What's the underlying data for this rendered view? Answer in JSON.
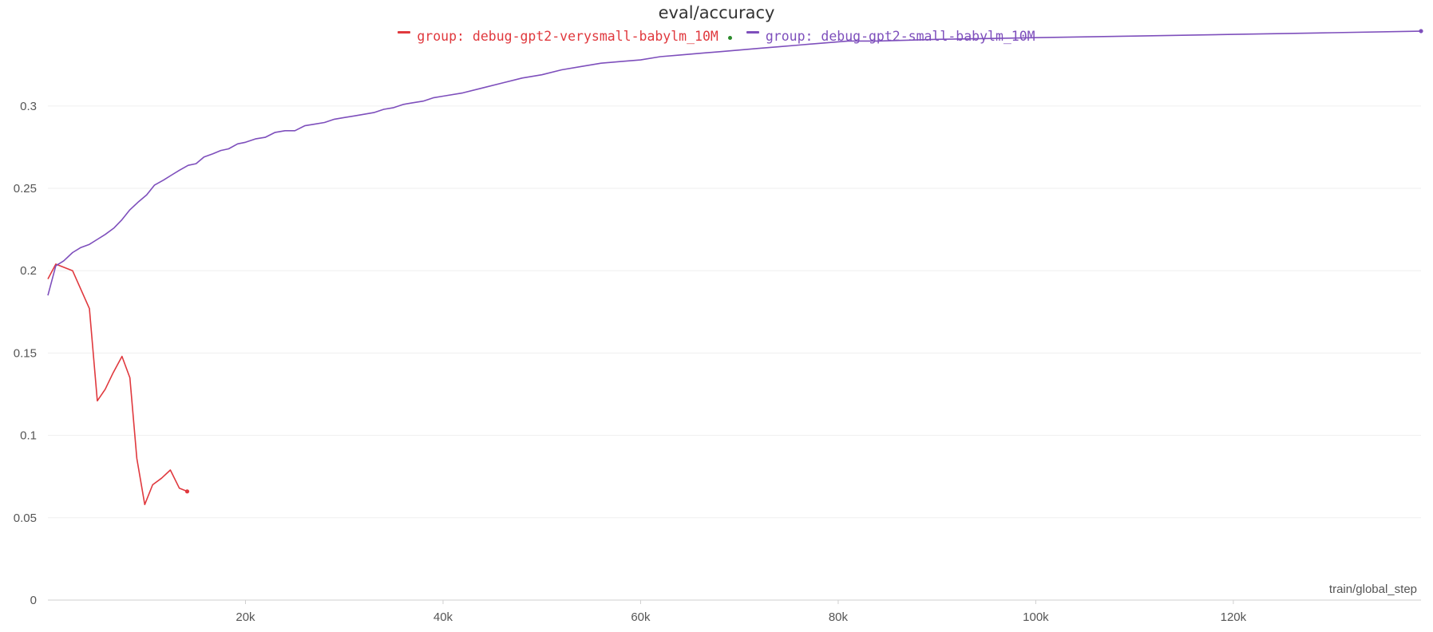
{
  "chart_data": {
    "type": "line",
    "title": "eval/accuracy",
    "xlabel": "train/global_step",
    "ylabel": "",
    "xlim": [
      0,
      139000
    ],
    "ylim": [
      0,
      0.345
    ],
    "x_ticks": [
      20000,
      40000,
      60000,
      80000,
      100000,
      120000
    ],
    "x_tick_labels": [
      "20k",
      "40k",
      "60k",
      "80k",
      "100k",
      "120k"
    ],
    "y_ticks": [
      0,
      0.05,
      0.1,
      0.15,
      0.2,
      0.25,
      0.3
    ],
    "y_tick_labels": [
      "0",
      "0.05",
      "0.1",
      "0.15",
      "0.2",
      "0.25",
      "0.3"
    ],
    "grid": "horizontal",
    "legend_position": "top-center",
    "series": [
      {
        "name": "group: debug-gpt2-verysmall-babylm_10M",
        "color": "#e0393e",
        "x": [
          0,
          800,
          2500,
          4200,
          5000,
          5800,
          6600,
          7500,
          8300,
          9000,
          9800,
          10600,
          11500,
          12400,
          13300,
          14100
        ],
        "y": [
          0.195,
          0.204,
          0.2,
          0.177,
          0.121,
          0.128,
          0.138,
          0.148,
          0.135,
          0.086,
          0.058,
          0.07,
          0.074,
          0.079,
          0.068,
          0.066
        ]
      },
      {
        "name": "group: debug-gpt2-small-babylm_10M",
        "color": "#7e4fbc",
        "x": [
          0,
          800,
          1600,
          2500,
          3300,
          4200,
          5000,
          5800,
          6700,
          7500,
          8300,
          9200,
          10000,
          10800,
          11700,
          12500,
          13300,
          14200,
          15000,
          15800,
          16700,
          17500,
          18300,
          19200,
          20000,
          21000,
          22000,
          23000,
          24000,
          25000,
          26000,
          27000,
          28000,
          29000,
          30000,
          31000,
          32000,
          33000,
          34000,
          35000,
          36000,
          37000,
          38000,
          39000,
          40000,
          42000,
          44000,
          46000,
          48000,
          50000,
          52000,
          54000,
          56000,
          58000,
          60000,
          62000,
          64000,
          66000,
          68000,
          70000,
          72000,
          74000,
          76000,
          78000,
          80000,
          81000,
          82000,
          83000,
          84000,
          90000,
          100000,
          110000,
          120000,
          130000,
          139000
        ],
        "y": [
          0.185,
          0.203,
          0.206,
          0.211,
          0.214,
          0.216,
          0.219,
          0.222,
          0.226,
          0.231,
          0.237,
          0.242,
          0.246,
          0.252,
          0.255,
          0.258,
          0.261,
          0.264,
          0.265,
          0.269,
          0.271,
          0.273,
          0.274,
          0.277,
          0.278,
          0.28,
          0.281,
          0.284,
          0.285,
          0.285,
          0.288,
          0.289,
          0.29,
          0.292,
          0.293,
          0.294,
          0.295,
          0.296,
          0.298,
          0.299,
          0.301,
          0.302,
          0.303,
          0.305,
          0.306,
          0.308,
          0.311,
          0.314,
          0.317,
          0.319,
          0.322,
          0.324,
          0.326,
          0.327,
          0.328,
          0.33,
          0.331,
          0.332,
          0.333,
          0.334,
          0.335,
          0.336,
          0.337,
          0.338,
          0.339,
          0.3395,
          0.3395,
          0.3395,
          0.3395,
          0.3405,
          0.3415,
          0.3425,
          0.3435,
          0.3445,
          0.3455
        ]
      }
    ],
    "legend_dot_color": "#2a8a2a"
  }
}
